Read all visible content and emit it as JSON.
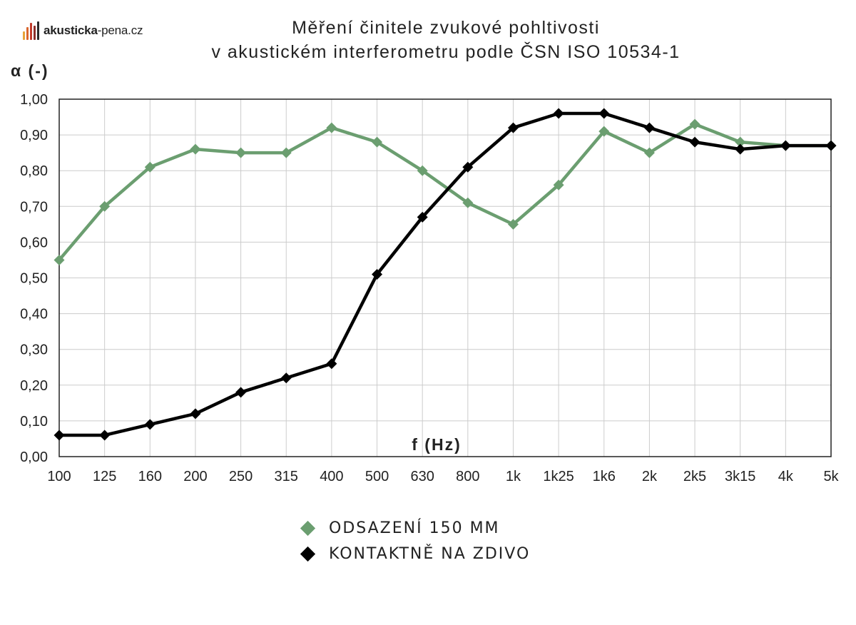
{
  "logo": {
    "text_bold": "akusticka",
    "text_rest": "-pena.cz",
    "bar_colors": [
      "#e8a33a",
      "#d9662d",
      "#c23b2b",
      "#8b2f2a",
      "#2a2a2a"
    ]
  },
  "colors": {
    "green": "#6b9e70",
    "black": "#000000",
    "grid": "#cccccc",
    "axis": "#222222"
  },
  "chart_data": {
    "type": "line",
    "title": "Měření činitele zvukové pohltivosti",
    "subtitle": "v akustickém interferometru podle ČSN ISO 10534-1",
    "ylabel": "α (-)",
    "xlabel": "f (Hz)",
    "ylim": [
      0,
      1
    ],
    "grid": true,
    "legend_position": "bottom-center",
    "yticks": [
      "0,00",
      "0,10",
      "0,20",
      "0,30",
      "0,40",
      "0,50",
      "0,60",
      "0,70",
      "0,80",
      "0,90",
      "1,00"
    ],
    "categories": [
      "100",
      "125",
      "160",
      "200",
      "250",
      "315",
      "400",
      "500",
      "630",
      "800",
      "1k",
      "1k25",
      "1k6",
      "2k",
      "2k5",
      "3k15",
      "4k",
      "5k"
    ],
    "series": [
      {
        "name": "ODSAZENÍ 150 MM",
        "color": "#6b9e70",
        "values": [
          0.55,
          0.7,
          0.81,
          0.86,
          0.85,
          0.85,
          0.92,
          0.88,
          0.8,
          0.71,
          0.65,
          0.76,
          0.91,
          0.85,
          0.93,
          0.88,
          0.87,
          0.87
        ]
      },
      {
        "name": "KONTAKTNĚ NA ZDIVO",
        "color": "#000000",
        "values": [
          0.06,
          0.06,
          0.09,
          0.12,
          0.18,
          0.22,
          0.26,
          0.51,
          0.67,
          0.81,
          0.92,
          0.96,
          0.96,
          0.92,
          0.88,
          0.86,
          0.87,
          0.87
        ]
      }
    ]
  }
}
